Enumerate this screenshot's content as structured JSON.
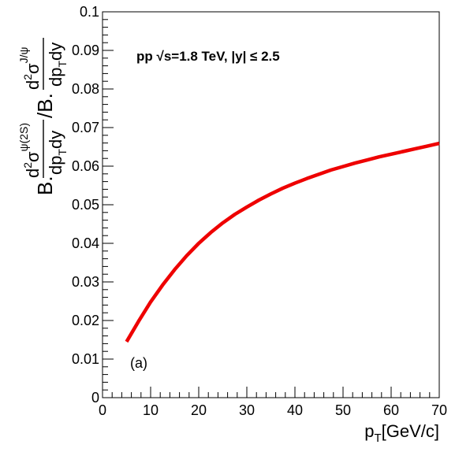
{
  "chart_data": {
    "type": "line",
    "title": "",
    "xlabel": "p_T[GeV/c]",
    "ylabel": "B.(d²σ^ψ(2S)/dp_T dy) / B.(d²σ^J/ψ/dp_T dy)",
    "xlim": [
      0,
      70
    ],
    "ylim": [
      0,
      0.1
    ],
    "x_ticks": [
      "0",
      "10",
      "20",
      "30",
      "40",
      "50",
      "60",
      "70"
    ],
    "y_ticks": [
      "0",
      "0.01",
      "0.02",
      "0.03",
      "0.04",
      "0.05",
      "0.06",
      "0.07",
      "0.08",
      "0.09",
      "0.1"
    ],
    "grid": false,
    "legend": "none",
    "annotation": "pp  √s=1.8 TeV, |y| ≤ 2.5",
    "panel_label": "(a)",
    "series": [
      {
        "color": "#ee0000",
        "x": [
          5,
          7.5,
          10,
          12.5,
          15,
          17.5,
          20,
          22.5,
          25,
          27.5,
          30,
          32.5,
          35,
          37.5,
          40,
          42.5,
          45,
          47.5,
          50,
          52.5,
          55,
          57.5,
          60,
          62.5,
          65,
          67.5,
          70
        ],
        "y": [
          0.0145,
          0.0198,
          0.0248,
          0.0292,
          0.0332,
          0.0368,
          0.04,
          0.0428,
          0.0453,
          0.0475,
          0.0494,
          0.0512,
          0.0528,
          0.0543,
          0.0556,
          0.0568,
          0.0579,
          0.059,
          0.0599,
          0.0608,
          0.0616,
          0.0624,
          0.0631,
          0.0638,
          0.0645,
          0.0652,
          0.0659
        ]
      }
    ]
  }
}
